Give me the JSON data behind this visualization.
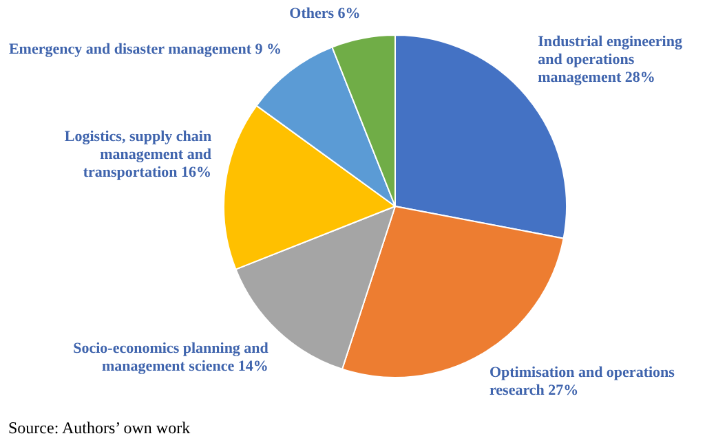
{
  "chart_data": {
    "type": "pie",
    "categories": [
      "Industrial engineering and operations management",
      "Optimisation and operations research",
      "Socio-economics planning and management science",
      "Logistics, supply chain management and transportation",
      "Emergency and disaster management",
      "Others"
    ],
    "values": [
      28,
      27,
      14,
      16,
      9,
      6
    ],
    "value_labels": [
      "28%",
      "27%",
      "14%",
      "16%",
      "9 %",
      "6%"
    ],
    "colors": [
      "#4472c4",
      "#ed7d31",
      "#a5a5a5",
      "#ffc000",
      "#5b9bd5",
      "#70ad47"
    ],
    "legend": false,
    "annotations": [
      "Source: Authors’ own work"
    ]
  }
}
